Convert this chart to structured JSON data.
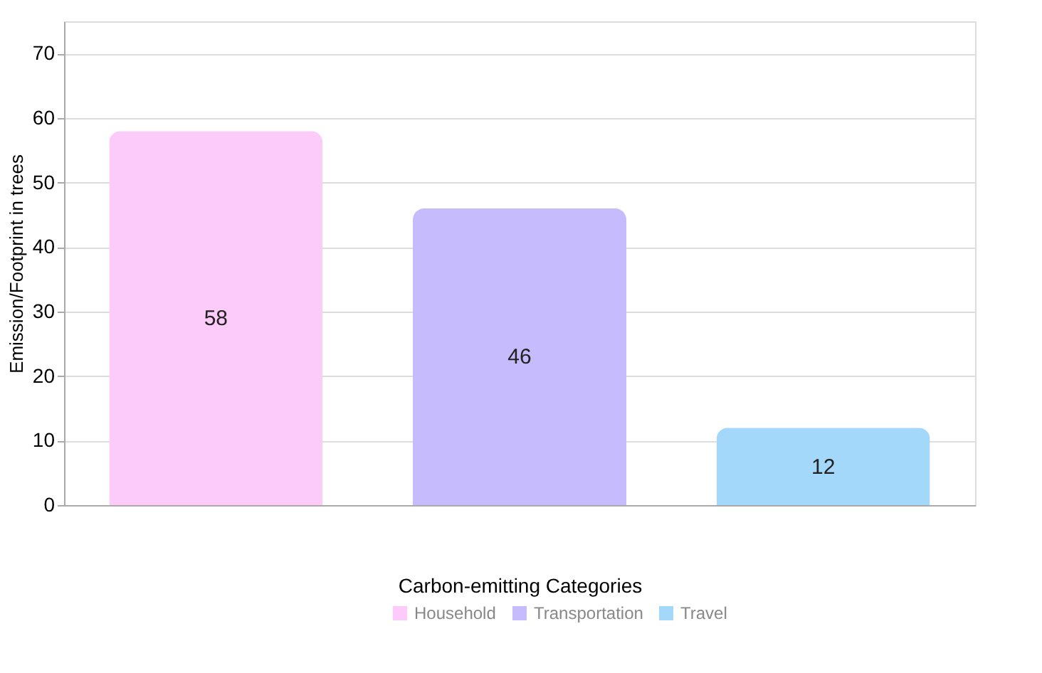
{
  "chart_data": {
    "type": "bar",
    "xlabel": "Carbon-emitting Categories",
    "ylabel": "Emission/Footprint in trees",
    "categories": [
      null,
      null,
      null
    ],
    "series": [
      {
        "name": "Household",
        "color": "#fccbfa",
        "values": [
          58,
          null,
          null
        ]
      },
      {
        "name": "Transportation",
        "color": "#c6bbfc",
        "values": [
          null,
          46,
          null
        ]
      },
      {
        "name": "Travel",
        "color": "#a4d8fb",
        "values": [
          null,
          null,
          12
        ]
      }
    ],
    "ylim": [
      0,
      75
    ],
    "yticks": [
      0,
      10,
      20,
      30,
      40,
      50,
      60,
      70
    ],
    "grid": "y",
    "legend": "bottom",
    "data_labels": true,
    "tick_labels": "y"
  }
}
